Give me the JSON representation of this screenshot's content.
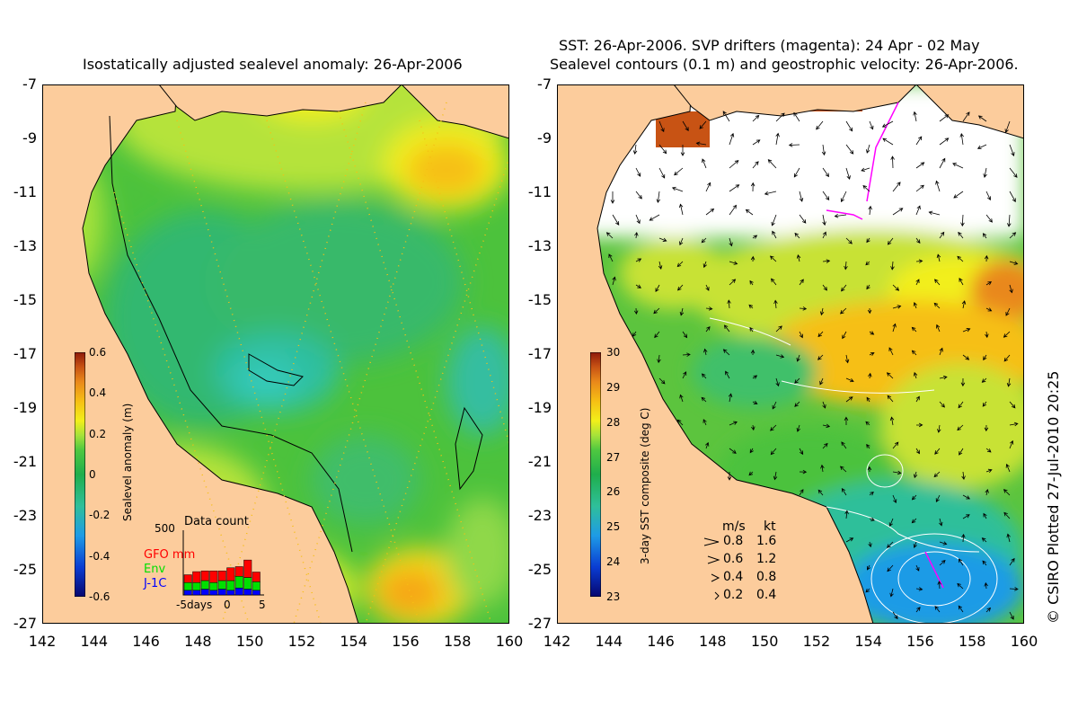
{
  "left_panel": {
    "title": "Isostatically adjusted sealevel anomaly: 26-Apr-2006",
    "colorbar": {
      "label": "Sealevel anomaly (m)",
      "ticks": [
        "0.6",
        "0.4",
        "0.2",
        "0",
        "-0.2",
        "-0.4",
        "-0.6"
      ],
      "colors": [
        "#06066e",
        "#0a3cd2",
        "#1e9be6",
        "#2fbf9a",
        "#1fae4c",
        "#4fc840",
        "#a6e23a",
        "#f2ef1a",
        "#f6bf14",
        "#e9881a",
        "#c85314",
        "#8e1a0a"
      ]
    },
    "data_count": {
      "title": "Data count",
      "ymax_label": "500",
      "series": [
        {
          "name": "GFO mm",
          "color": "#ff0000"
        },
        {
          "name": "Env",
          "color": "#00e000"
        },
        {
          "name": "J-1C",
          "color": "#0000ff"
        }
      ],
      "x_labels": [
        "-5days",
        "0",
        "5"
      ],
      "bars": [
        {
          "j1": 0.12,
          "env": 0.2,
          "gfo": 0.2
        },
        {
          "j1": 0.12,
          "env": 0.2,
          "gfo": 0.28
        },
        {
          "j1": 0.15,
          "env": 0.22,
          "gfo": 0.25
        },
        {
          "j1": 0.12,
          "env": 0.2,
          "gfo": 0.3
        },
        {
          "j1": 0.15,
          "env": 0.22,
          "gfo": 0.25
        },
        {
          "j1": 0.12,
          "env": 0.25,
          "gfo": 0.33
        },
        {
          "j1": 0.18,
          "env": 0.3,
          "gfo": 0.25
        },
        {
          "j1": 0.15,
          "env": 0.3,
          "gfo": 0.45
        },
        {
          "j1": 0.12,
          "env": 0.22,
          "gfo": 0.25
        }
      ]
    }
  },
  "right_panel": {
    "title_line1": "SST: 26-Apr-2006. SVP drifters (magenta): 24 Apr - 02 May",
    "title_line2": "Sealevel contours (0.1 m) and geostrophic velocity: 26-Apr-2006.",
    "colorbar": {
      "label": "3-day SST composite (deg C)",
      "ticks": [
        "30",
        "29",
        "28",
        "27",
        "26",
        "25",
        "24",
        "23"
      ],
      "colors": [
        "#06066e",
        "#0a3cd2",
        "#1e9be6",
        "#2fbf9a",
        "#1fae4c",
        "#4fc840",
        "#a6e23a",
        "#f2ef1a",
        "#f6bf14",
        "#e9881a",
        "#c85314",
        "#8e1a0a"
      ]
    },
    "velocity_legend": {
      "header_ms": "m/s",
      "header_kt": "kt",
      "rows": [
        {
          "ms": "0.8",
          "kt": "1.6"
        },
        {
          "ms": "0.6",
          "kt": "1.2"
        },
        {
          "ms": "0.4",
          "kt": "0.8"
        },
        {
          "ms": "0.2",
          "kt": "0.4"
        }
      ]
    }
  },
  "axes": {
    "lat_labels": [
      "-7",
      "-9",
      "-11",
      "-13",
      "-15",
      "-17",
      "-19",
      "-21",
      "-23",
      "-25",
      "-27"
    ],
    "lon_labels": [
      "142",
      "144",
      "146",
      "148",
      "150",
      "152",
      "154",
      "156",
      "158",
      "160"
    ]
  },
  "credit": "© CSIRO Plotted 27-Jul-2010 20:25",
  "colors": {
    "land": "#fccc9c",
    "no_data": "#ffffff",
    "coast": "#000000"
  }
}
